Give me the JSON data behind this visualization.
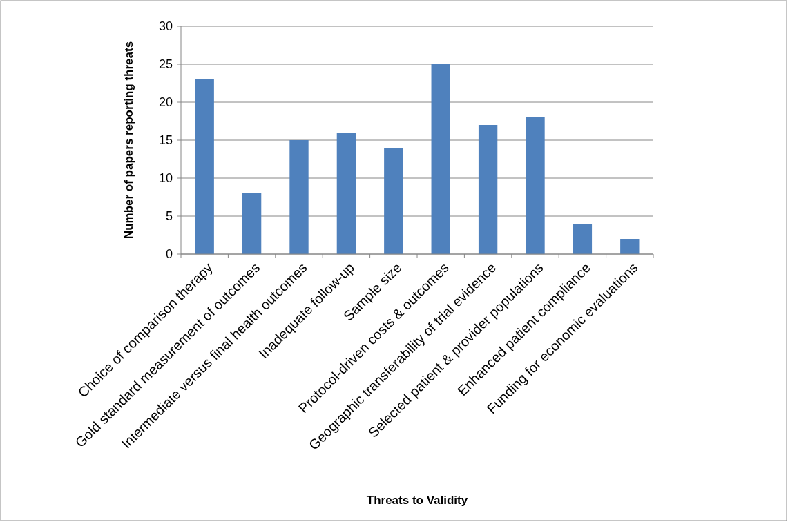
{
  "chart_data": {
    "type": "bar",
    "xlabel": "Threats to Validity",
    "ylabel": "Number of papers reporting threats",
    "categories": [
      "Choice of comparison therapy",
      "Gold standard measurement of outcomes",
      "Intermediate versus final health outcomes",
      "Inadequate follow-up",
      "Sample size",
      "Protocol-driven costs & outcomes",
      "Geographic transferability of trial evidence",
      "Selected patient & provider populations",
      "Enhanced patient compliance",
      "Funding for economic evaluations"
    ],
    "values": [
      23,
      8,
      15,
      16,
      14,
      25,
      17,
      18,
      4,
      2
    ],
    "color": "#4f81bd",
    "ylim": [
      0,
      30
    ],
    "yticks": [
      0,
      5,
      10,
      15,
      20,
      25,
      30
    ],
    "grid": "y"
  }
}
